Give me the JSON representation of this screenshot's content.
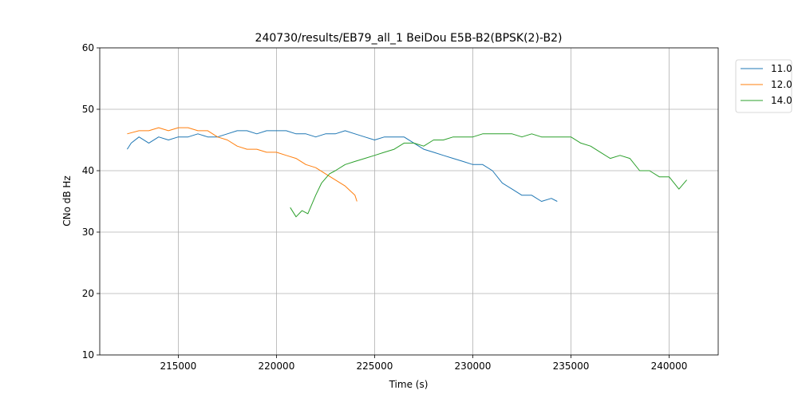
{
  "chart_data": {
    "type": "line",
    "title": "240730/results/EB79_all_1 BeiDou E5B-B2(BPSK(2)-B2)",
    "xlabel": "Time (s)",
    "ylabel": "CNo dB Hz",
    "xlim": [
      211000,
      242500
    ],
    "ylim": [
      10,
      60
    ],
    "xticks": [
      215000,
      220000,
      225000,
      230000,
      235000,
      240000
    ],
    "xtick_labels": [
      "215000",
      "220000",
      "225000",
      "230000",
      "235000",
      "240000"
    ],
    "yticks": [
      10,
      20,
      30,
      40,
      50,
      60
    ],
    "ytick_labels": [
      "10",
      "20",
      "30",
      "40",
      "50",
      "60"
    ],
    "grid": true,
    "legend_position": "outside-top-right",
    "series": [
      {
        "name": "11.0",
        "color": "#1f77b4",
        "x": [
          212400,
          212600,
          213000,
          213500,
          214000,
          214500,
          215000,
          215500,
          216000,
          216500,
          217000,
          217500,
          218000,
          218500,
          219000,
          219500,
          220000,
          220500,
          221000,
          221500,
          222000,
          222500,
          223000,
          223500,
          224000,
          224500,
          225000,
          225500,
          226000,
          226500,
          227000,
          227500,
          228000,
          228500,
          229000,
          229500,
          230000,
          230500,
          231000,
          231500,
          232000,
          232500,
          233000,
          233500,
          234000,
          234300
        ],
        "y": [
          43.5,
          44.5,
          45.5,
          44.5,
          45.5,
          45.0,
          45.5,
          45.5,
          46.0,
          45.5,
          45.5,
          46.0,
          46.5,
          46.5,
          46.0,
          46.5,
          46.5,
          46.5,
          46.0,
          46.0,
          45.5,
          46.0,
          46.0,
          46.5,
          46.0,
          45.5,
          45.0,
          45.5,
          45.5,
          45.5,
          44.5,
          43.5,
          43.0,
          42.5,
          42.0,
          41.5,
          41.0,
          41.0,
          40.0,
          38.0,
          37.0,
          36.0,
          36.0,
          35.0,
          35.5,
          35.0
        ]
      },
      {
        "name": "12.0",
        "color": "#ff7f0e",
        "x": [
          212400,
          213000,
          213500,
          214000,
          214500,
          215000,
          215500,
          216000,
          216500,
          217000,
          217500,
          218000,
          218500,
          219000,
          219500,
          220000,
          220500,
          221000,
          221500,
          222000,
          222500,
          223000,
          223500,
          224000,
          224100
        ],
        "y": [
          46.0,
          46.5,
          46.5,
          47.0,
          46.5,
          47.0,
          47.0,
          46.5,
          46.5,
          45.5,
          45.0,
          44.0,
          43.5,
          43.5,
          43.0,
          43.0,
          42.5,
          42.0,
          41.0,
          40.5,
          39.5,
          38.5,
          37.5,
          36.0,
          35.0
        ]
      },
      {
        "name": "14.0",
        "color": "#2ca02c",
        "x": [
          220700,
          221000,
          221300,
          221600,
          222000,
          222300,
          222700,
          223000,
          223500,
          224000,
          224500,
          225000,
          225500,
          226000,
          226500,
          227000,
          227500,
          228000,
          228500,
          229000,
          229500,
          230000,
          230500,
          231000,
          231500,
          232000,
          232500,
          233000,
          233500,
          234000,
          234500,
          235000,
          235500,
          236000,
          236500,
          237000,
          237500,
          238000,
          238500,
          239000,
          239500,
          240000,
          240500,
          240900
        ],
        "y": [
          34.0,
          32.5,
          33.5,
          33.0,
          36.0,
          38.0,
          39.5,
          40.0,
          41.0,
          41.5,
          42.0,
          42.5,
          43.0,
          43.5,
          44.5,
          44.5,
          44.0,
          45.0,
          45.0,
          45.5,
          45.5,
          45.5,
          46.0,
          46.0,
          46.0,
          46.0,
          45.5,
          46.0,
          45.5,
          45.5,
          45.5,
          45.5,
          44.5,
          44.0,
          43.0,
          42.0,
          42.5,
          42.0,
          40.0,
          40.0,
          39.0,
          39.0,
          37.0,
          38.5
        ]
      }
    ]
  }
}
